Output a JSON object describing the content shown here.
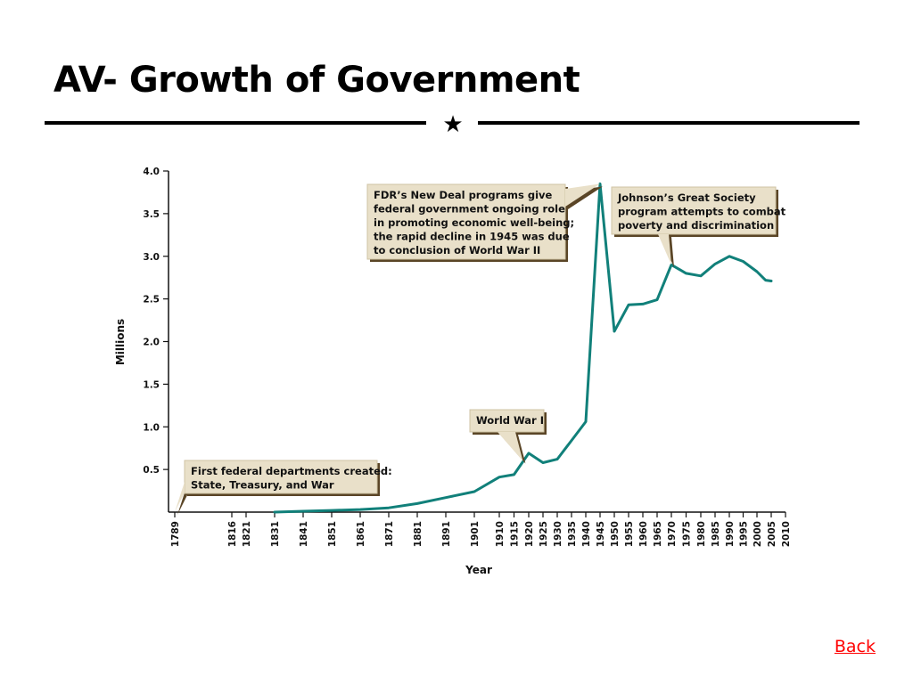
{
  "slide": {
    "title": "AV- Growth of Government",
    "divider_icon": "star-icon",
    "divider_glyph": "★"
  },
  "back_link": "Back",
  "colors": {
    "line": "#11807a",
    "callout_bg": "#e9e0c9",
    "callout_shadow": "#5a4526",
    "link": "#ff0000"
  },
  "chart_data": {
    "type": "line",
    "title": "",
    "xlabel": "Year",
    "ylabel": "Millions",
    "ylim": [
      0,
      4.0
    ],
    "y_ticks": [
      "4.0",
      "3.5",
      "3.0",
      "2.5",
      "2.0",
      "1.5",
      "1.0",
      "0.5"
    ],
    "y_tick_values": [
      4.0,
      3.5,
      3.0,
      2.5,
      2.0,
      1.5,
      1.0,
      0.5
    ],
    "x_ticks": [
      "1789",
      "1816",
      "1821",
      "1831",
      "1841",
      "1851",
      "1861",
      "1871",
      "1881",
      "1891",
      "1901",
      "1910",
      "1915",
      "1920",
      "1925",
      "1930",
      "1935",
      "1940",
      "1945",
      "1950",
      "1955",
      "1960",
      "1965",
      "1970",
      "1975",
      "1980",
      "1985",
      "1990",
      "1995",
      "2000",
      "2005",
      "2010"
    ],
    "x_tick_values": [
      1789,
      1816,
      1821,
      1831,
      1841,
      1851,
      1861,
      1871,
      1881,
      1891,
      1901,
      1910,
      1915,
      1920,
      1925,
      1930,
      1935,
      1940,
      1945,
      1950,
      1955,
      1960,
      1965,
      1970,
      1975,
      1980,
      1985,
      1990,
      1995,
      2000,
      2005,
      2010
    ],
    "grid": false,
    "series": [
      {
        "x": [
          1831,
          1841,
          1851,
          1861,
          1871,
          1881,
          1891,
          1901,
          1910,
          1915,
          1920,
          1925,
          1930,
          1935,
          1940,
          1945,
          1950,
          1955,
          1960,
          1965,
          1970,
          1975,
          1980,
          1985,
          1990,
          1995,
          2000,
          2003,
          2005
        ],
        "y": [
          0.0,
          0.01,
          0.02,
          0.03,
          0.05,
          0.1,
          0.17,
          0.24,
          0.41,
          0.44,
          0.69,
          0.58,
          0.62,
          0.84,
          1.06,
          3.85,
          2.12,
          2.43,
          2.44,
          2.49,
          2.9,
          2.8,
          2.77,
          2.91,
          3.0,
          2.94,
          2.82,
          2.72,
          2.71
        ]
      }
    ],
    "annotations": [
      {
        "year": 1789,
        "value": 0.0,
        "lines": [
          "First federal departments created:",
          "State, Treasury, and War"
        ]
      },
      {
        "year": 1918,
        "value": 0.6,
        "lines": [
          "World War I"
        ]
      },
      {
        "year": 1945,
        "value": 3.85,
        "lines": [
          "FDR’s New Deal programs give",
          "federal government ongoing role",
          "in promoting economic well-being;",
          "the rapid decline in 1945 was due",
          "to conclusion of World War II"
        ]
      },
      {
        "year": 1970,
        "value": 2.9,
        "lines": [
          "Johnson’s Great Society",
          "program attempts to combat",
          "poverty and discrimination"
        ]
      }
    ]
  }
}
